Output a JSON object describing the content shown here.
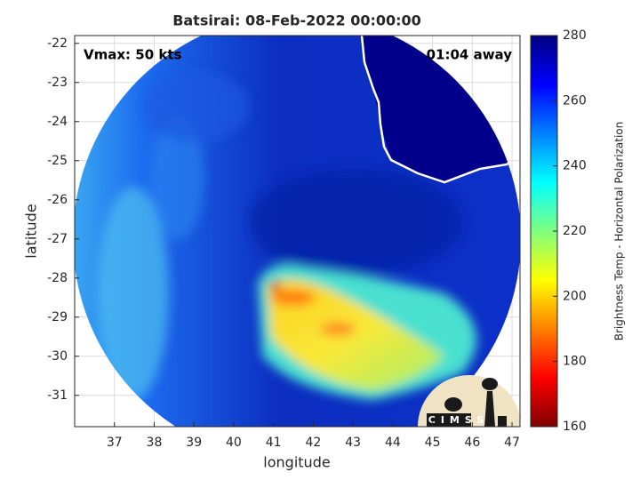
{
  "chart_data": {
    "type": "heatmap",
    "title": "Batsirai: 08-Feb-2022 00:00:00",
    "annotations": [
      "Vmax: 50 kts",
      "01:04 away"
    ],
    "xlabel": "longitude",
    "ylabel": "latitude",
    "xlim": [
      36,
      47.2
    ],
    "ylim": [
      -31.8,
      -21.8
    ],
    "xticks": [
      37,
      38,
      39,
      40,
      41,
      42,
      43,
      44,
      45,
      46,
      47
    ],
    "yticks": [
      -22,
      -23,
      -24,
      -25,
      -26,
      -27,
      -28,
      -29,
      -30,
      -31
    ],
    "grid": true,
    "colormap": "jet",
    "colorbar": {
      "label": "Brightness Temp - Horizontal Polarization",
      "lim": [
        160,
        280
      ],
      "ticks": [
        160,
        180,
        200,
        220,
        240,
        260,
        280
      ]
    },
    "logo": "CIMSS"
  }
}
